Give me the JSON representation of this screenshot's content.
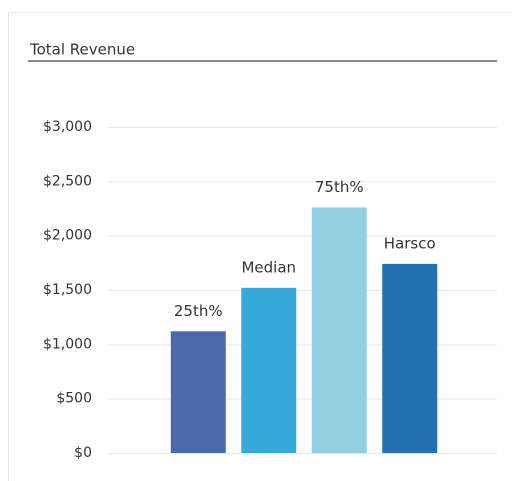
{
  "chart_data": {
    "type": "bar",
    "title": "Total Revenue",
    "categories": [
      "25th%",
      "Median",
      "75th%",
      "Harsco"
    ],
    "values": [
      1120,
      1520,
      2260,
      1740
    ],
    "colors": [
      "#4a6aad",
      "#35a8d9",
      "#93cfe2",
      "#2370b3"
    ],
    "ylim": [
      0,
      3000
    ],
    "yticks": [
      {
        "value": 0,
        "label": "$0"
      },
      {
        "value": 500,
        "label": "$500"
      },
      {
        "value": 1000,
        "label": "$1,000"
      },
      {
        "value": 1500,
        "label": "$1,500"
      },
      {
        "value": 2000,
        "label": "$2,000"
      },
      {
        "value": 2500,
        "label": "$2,500"
      },
      {
        "value": 3000,
        "label": "$3,000"
      }
    ],
    "grid": true
  }
}
